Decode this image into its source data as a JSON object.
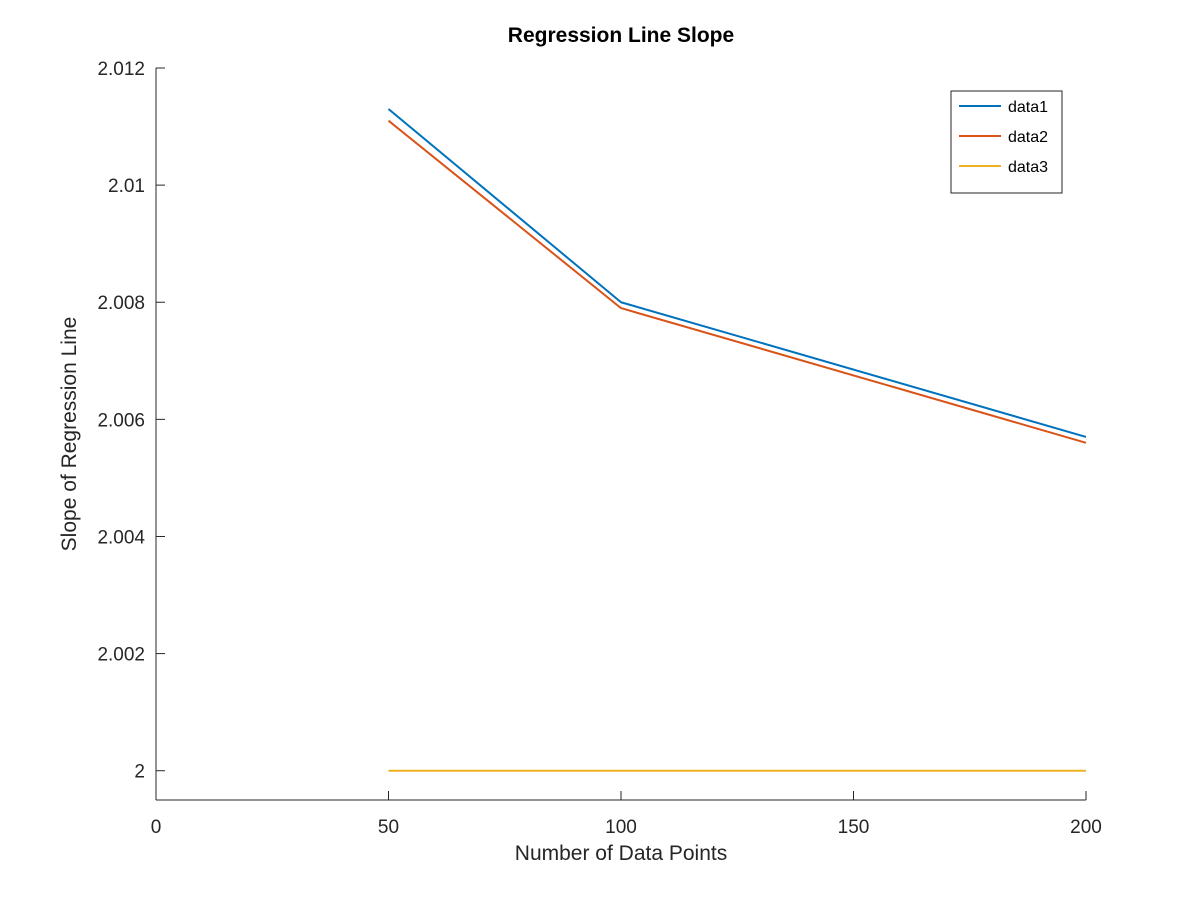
{
  "chart_data": {
    "type": "line",
    "title": "Regression Line Slope",
    "xlabel": "Number of Data Points",
    "ylabel": "Slope of Regression Line",
    "xlim": [
      0,
      200
    ],
    "ylim": [
      1.9995,
      2.012
    ],
    "xticks": [
      0,
      50,
      100,
      150,
      200
    ],
    "xtick_labels": [
      "0",
      "50",
      "100",
      "150",
      "200"
    ],
    "yticks": [
      2,
      2.002,
      2.004,
      2.006,
      2.008,
      2.01,
      2.012
    ],
    "ytick_labels": [
      "2",
      "2.002",
      "2.004",
      "2.006",
      "2.008",
      "2.01",
      "2.012"
    ],
    "grid": false,
    "legend_position": "top-right",
    "x": [
      50,
      100,
      200
    ],
    "series": [
      {
        "name": "data1",
        "color": "#0072BD",
        "values": [
          2.0113,
          2.008,
          2.0057
        ]
      },
      {
        "name": "data2",
        "color": "#D95319",
        "values": [
          2.0111,
          2.0079,
          2.0056
        ]
      },
      {
        "name": "data3",
        "color": "#EDB120",
        "values": [
          2.0,
          2.0,
          2.0
        ]
      }
    ]
  }
}
